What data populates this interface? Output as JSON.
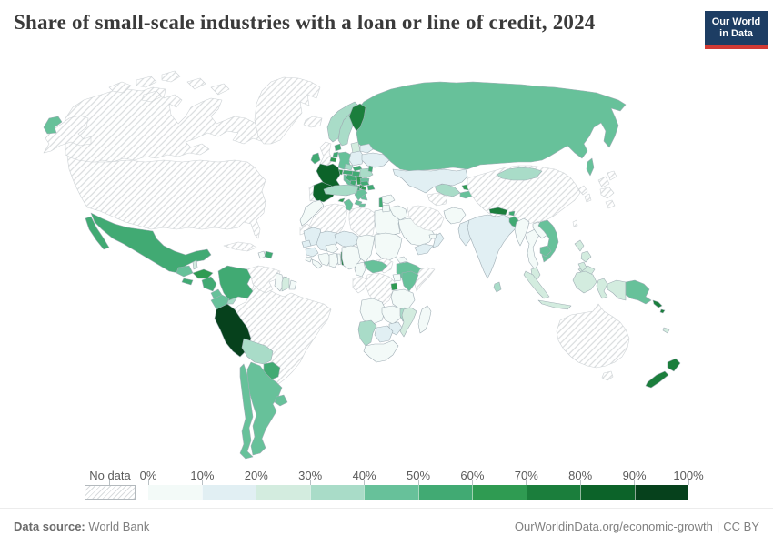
{
  "header": {
    "title": "Share of small-scale industries with a loan or line of credit, 2024",
    "logo": {
      "line1": "Our World",
      "line2": "in Data",
      "bg_color": "#1d3d63",
      "accent_color": "#d13a34"
    }
  },
  "legend": {
    "no_data_label": "No data",
    "ticks": [
      "0%",
      "10%",
      "20%",
      "30%",
      "40%",
      "50%",
      "60%",
      "70%",
      "80%",
      "90%",
      "100%"
    ]
  },
  "footer": {
    "source_label": "Data source:",
    "source_value": "World Bank",
    "link": "OurWorldinData.org/economic-growth",
    "separator": "|",
    "license": "CC BY"
  },
  "chart_data": {
    "type": "choropleth_map",
    "title": "Share of small-scale industries with a loan or line of credit, 2024",
    "unit": "%",
    "year": "2024",
    "no_data_style": "diagonal-hatch",
    "border_colors": {
      "data": "#9fadb4",
      "no_data": "#cdd2d5"
    },
    "legend_bins": [
      {
        "range": "0-10%",
        "color": "#f3faf8"
      },
      {
        "range": "10-20%",
        "color": "#e1eff3"
      },
      {
        "range": "20-30%",
        "color": "#d3ecdf"
      },
      {
        "range": "30-40%",
        "color": "#a9dcc8"
      },
      {
        "range": "40-50%",
        "color": "#67c19a"
      },
      {
        "range": "50-60%",
        "color": "#41aa73"
      },
      {
        "range": "60-70%",
        "color": "#2f9b52"
      },
      {
        "range": "70-80%",
        "color": "#1b7e3c"
      },
      {
        "range": "80-90%",
        "color": "#0c6329"
      },
      {
        "range": "90-100%",
        "color": "#06411c"
      }
    ],
    "countries": {
      "united-states": "no-data",
      "canada": "no-data",
      "greenland": "no-data",
      "iceland": "no-data",
      "cuba": "no-data",
      "venezuela": "no-data",
      "brazil": "no-data",
      "united-kingdom": "no-data",
      "portugal": "no-data",
      "western-sahara": "no-data",
      "algeria": "no-data",
      "libya": "no-data",
      "south-sudan": "no-data",
      "somalia": "no-data",
      "gabon-congo": "no-data",
      "drc": "no-data",
      "iran": "no-data",
      "turkmenistan": "no-data",
      "china": "no-data",
      "japan": "no-data",
      "north-korea": "no-data",
      "south-korea": "no-data",
      "taiwan": "no-data",
      "australia": "no-data",
      "morocco": 0,
      "egypt": 0,
      "sierra-leone": 0,
      "liberia": 0,
      "cote-divoire": 0,
      "burkina-faso": 0,
      "ghana": 0,
      "togo": 0,
      "nigeria": 0,
      "chad": 0,
      "sudan": 0,
      "eritrea": 0,
      "cameroon": 0,
      "uganda": 0,
      "tanzania": 0,
      "angola": 0,
      "zambia": 0,
      "south-africa": 0,
      "madagascar": 0,
      "haiti": 0,
      "guyana": 0,
      "french-guiana": 0,
      "saudi-arabia": 0,
      "uae": 0,
      "iraq": 0,
      "syria": 0,
      "jordan": 0,
      "afghanistan": 0,
      "myanmar": 0,
      "thailand": 0,
      "laos": 0,
      "mauritania": 1,
      "mali": 1,
      "senegal": 1,
      "guinea": 1,
      "niger": 1,
      "poland": 1,
      "ukraine": 1,
      "belarus": 1,
      "zimbabwe": 1,
      "botswana": 1,
      "yemen": 1,
      "oman": 1,
      "pakistan": 1,
      "india": 1,
      "kazakhstan": 1,
      "baltic-states": 2,
      "suriname": 2,
      "trinidad-and-tobago": 2,
      "belize": 2,
      "mozambique": 2,
      "malaysia": 2,
      "indonesia": 2,
      "philippines": 2,
      "new-caledonia": 2,
      "bolivia": 3,
      "norway": 3,
      "sweden": 3,
      "czechia": 3,
      "romania": 3,
      "turkey": 3,
      "namibia": 3,
      "malawi": 3,
      "uzbekistan": 3,
      "mongolia": 3,
      "sri-lanka": 3,
      "panama": 3,
      "guatemala": 4,
      "costa-rica": 4,
      "ecuador": 4,
      "chile": 4,
      "argentina": 4,
      "uruguay": 4,
      "germany": 4,
      "italy": 4,
      "greece": 4,
      "bulgaria": 4,
      "ethiopia": 4,
      "kenya": 4,
      "central-african-republic": 4,
      "tunisia": 4,
      "russia": 4,
      "tajikistan": 4,
      "vietnam": 4,
      "cambodia": 4,
      "papua-new-guinea": 4,
      "mexico": 5,
      "el-salvador": 5,
      "nicaragua": 5,
      "dominican-republic": 5,
      "colombia": 5,
      "paraguay": 5,
      "ireland": 5,
      "netherlands": 5,
      "denmark": 5,
      "austria": 5,
      "hungary": 5,
      "slovakia": 5,
      "slovenia-croatia": 5,
      "bosnia": 5,
      "albania": 5,
      "moldova": 5,
      "georgia": 5,
      "azerbaijan": 5,
      "israel-lebanon": 5,
      "bhutan": 5,
      "bangladesh": 5,
      "honduras": 6,
      "belgium": 6,
      "switzerland": 6,
      "serbia": 6,
      "macedonia": 6,
      "armenia": 6,
      "cyprus": 6,
      "kyrgyzstan": 6,
      "rwanda-burundi": 6,
      "finland": 7,
      "benin": 7,
      "nepal": 7,
      "new-zealand": 7,
      "solomon-islands": 7,
      "spain": 8,
      "france": 8,
      "peru": 9
    }
  }
}
